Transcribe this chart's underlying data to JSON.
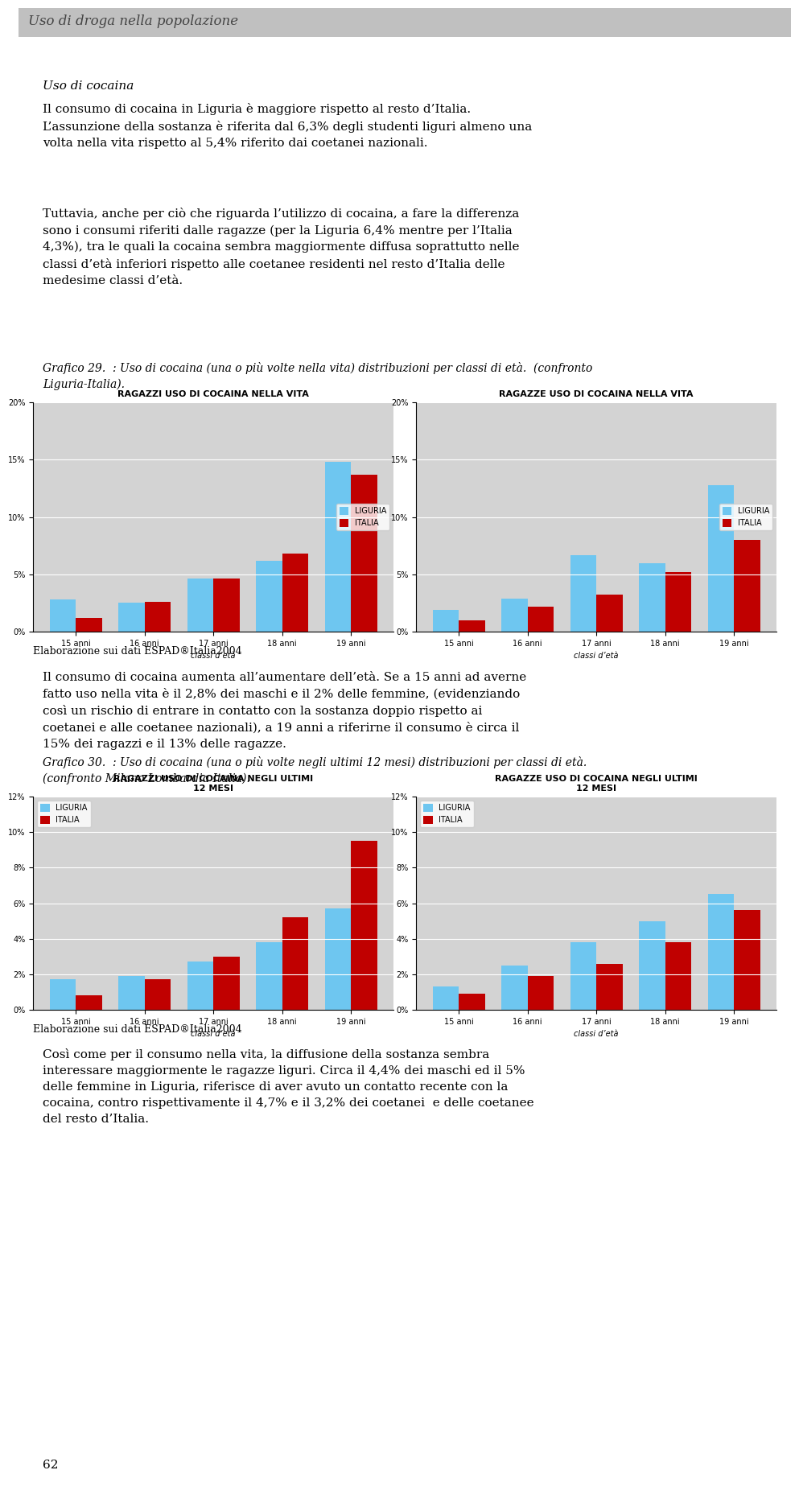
{
  "page_title": "Uso di droga nella popolazione",
  "section_title": "Uso di cocaina",
  "para1": "Il consumo di cocaina in Liguria è maggiore rispetto al resto d’Italia.\nL’assunzione della sostanza è riferita dal 6,3% degli studenti liguri almeno una\nvolta nella vita rispetto al 5,4% riferito dai coetanei nazionali.",
  "para2": "Tuttavia, anche per ciò che riguarda l’utilizzo di cocaina, a fare la differenza\nsono i consumi riferiti dalle ragazze (per la Liguria 6,4% mentre per l’Italia\n4,3%), tra le quali la cocaina sembra maggiormente diffusa soprattutto nelle\nclassi d’età inferiori rispetto alle coetanee residenti nel resto d’Italia delle\nmedesime classi d’età.",
  "grafico29_label": "Grafico 29.  : Uso di cocaina (una o più volte nella vita) distribuzioni per classi di età.  (confronto\nLiguria-Italia).",
  "chart1_title": "RAGAZZI USO DI COCAINA NELLA VITA",
  "chart2_title": "RAGAZZE USO DI COCAINA NELLA VITA",
  "chart3_title": "RAGAZZI USO DI COCAINA NEGLI ULTIMI\n12 MESI",
  "chart4_title": "RAGAZZE USO DI COCAINA NEGLI ULTIMI\n12 MESI",
  "categories": [
    "15 anni",
    "16 anni",
    "17 anni",
    "18 anni",
    "19 anni"
  ],
  "xlabel": "classi d’età",
  "legend_liguria": "LIGURIA",
  "legend_italia": "ITALIA",
  "color_liguria": "#6EC6F0",
  "color_italia": "#C00000",
  "chart1_liguria": [
    2.8,
    2.5,
    4.6,
    6.2,
    14.8
  ],
  "chart1_italia": [
    1.2,
    2.6,
    4.6,
    6.8,
    13.7
  ],
  "chart2_liguria": [
    1.9,
    2.9,
    6.7,
    6.0,
    12.8
  ],
  "chart2_italia": [
    1.0,
    2.2,
    3.2,
    5.2,
    8.0
  ],
  "chart1_ylim": [
    0,
    20
  ],
  "chart1_yticks": [
    0,
    5,
    10,
    15,
    20
  ],
  "chart3_liguria": [
    1.7,
    1.9,
    2.7,
    3.8,
    5.7
  ],
  "chart3_italia": [
    0.8,
    1.7,
    3.0,
    5.2,
    9.5
  ],
  "chart4_liguria": [
    1.3,
    2.5,
    3.8,
    5.0,
    6.5
  ],
  "chart4_italia": [
    0.9,
    1.9,
    2.6,
    3.8,
    5.6
  ],
  "chart3_ylim": [
    0,
    12
  ],
  "chart3_yticks": [
    0,
    2,
    4,
    6,
    8,
    10,
    12
  ],
  "elaborazione": "Elaborazione sui dati ESPAD®Italia2004",
  "para3": "Il consumo di cocaina aumenta all’aumentare dell’età. Se a 15 anni ad averne\nfatto uso nella vita è il 2,8% dei maschi e il 2% delle femmine, (evidenziando\ncosì un rischio di entrare in contatto con la sostanza doppio rispetto ai\ncoetanei e alle coetanee nazionali), a 19 anni a riferirne il consumo è circa il\n15% dei ragazzi e il 13% delle ragazze.",
  "grafico30_label": "Grafico 30.  : Uso di cocaina (una o più volte negli ultimi 12 mesi) distribuzioni per classi di età.\n(confronto Milano Lombardia Italia).",
  "para4": "Così come per il consumo nella vita, la diffusione della sostanza sembra\ninteressare maggiormente le ragazze liguri. Circa il 4,4% dei maschi ed il 5%\ndelle femmine in Liguria, riferisce di aver avuto un contatto recente con la\ncocaina, contro rispettivamente il 4,7% e il 3,2% dei coetanei  e delle coetanee\ndel resto d’Italia.",
  "page_number": "62",
  "header_color": "#C0C0C0",
  "chart_bg": "#D3D3D3",
  "chart_border": "#000000"
}
